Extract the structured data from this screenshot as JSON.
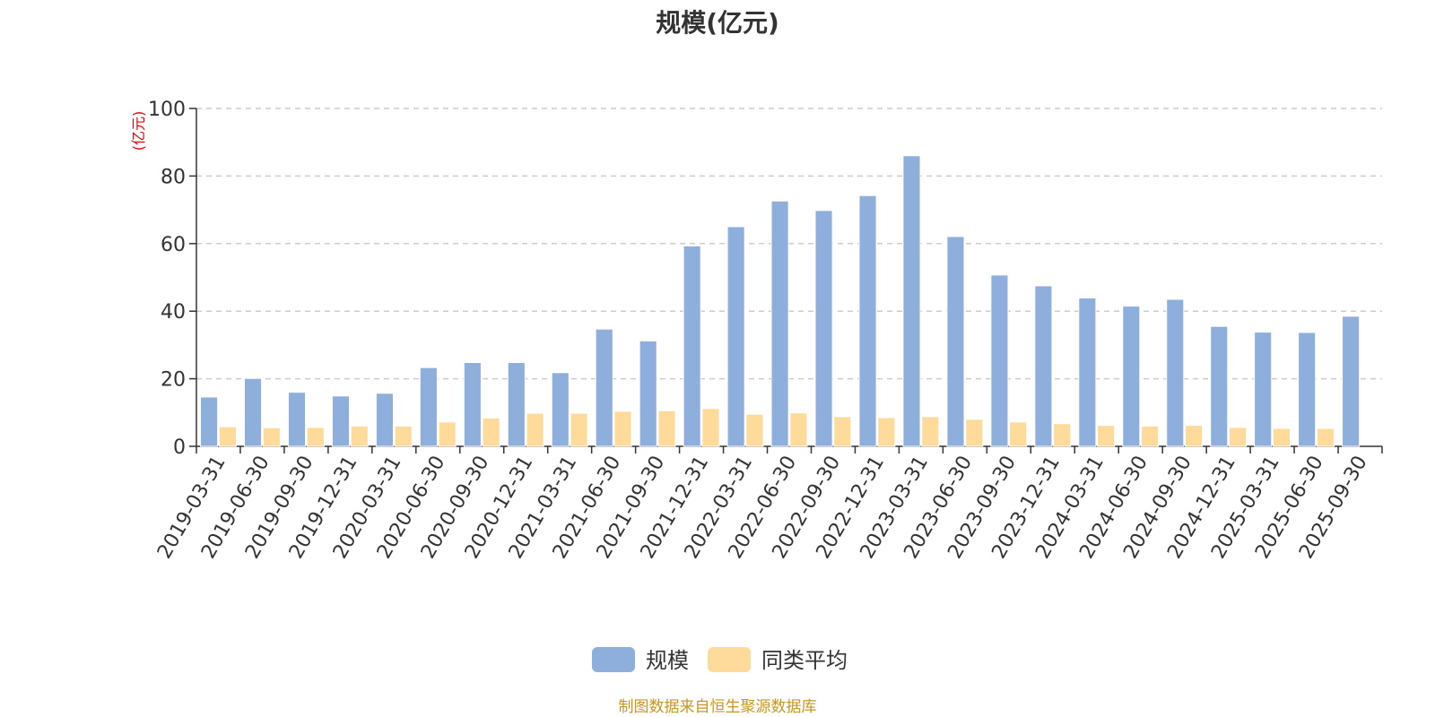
{
  "chart_data": {
    "type": "bar",
    "title": "规模(亿元)",
    "ylabel": "(亿元)",
    "xlabel": "",
    "ylim": [
      0,
      100
    ],
    "yticks": [
      0,
      20,
      40,
      60,
      80,
      100
    ],
    "grid": true,
    "legend_position": "bottom",
    "categories": [
      "2019-03-31",
      "2019-06-30",
      "2019-09-30",
      "2019-12-31",
      "2020-03-31",
      "2020-06-30",
      "2020-09-30",
      "2020-12-31",
      "2021-03-31",
      "2021-06-30",
      "2021-09-30",
      "2021-12-31",
      "2022-03-31",
      "2022-06-30",
      "2022-09-30",
      "2022-12-31",
      "2023-03-31",
      "2023-06-30",
      "2023-09-30",
      "2023-12-31",
      "2024-03-31",
      "2024-06-30",
      "2024-09-30",
      "2024-12-31",
      "2025-03-31",
      "2025-06-30",
      "2025-09-30"
    ],
    "series": [
      {
        "name": "规模",
        "color": "#8eaedb",
        "values": [
          14.6,
          20.1,
          16.0,
          14.9,
          15.7,
          23.3,
          24.8,
          24.8,
          21.8,
          34.7,
          31.2,
          59.3,
          65.0,
          72.6,
          69.8,
          74.2,
          86.0,
          62.1,
          50.7,
          47.5,
          43.9,
          41.5,
          43.5,
          35.5,
          33.8,
          33.7,
          38.5
        ]
      },
      {
        "name": "同类平均",
        "color": "#fedb9a",
        "values": [
          5.8,
          5.5,
          5.6,
          6.0,
          6.0,
          7.2,
          8.4,
          9.8,
          9.8,
          10.4,
          10.5,
          11.2,
          9.5,
          9.9,
          8.8,
          8.5,
          8.8,
          8.0,
          7.2,
          6.7,
          6.2,
          6.0,
          6.2,
          5.6,
          5.3,
          5.3,
          null
        ]
      }
    ]
  },
  "footer": {
    "source": "制图数据来自恒生聚源数据库"
  }
}
